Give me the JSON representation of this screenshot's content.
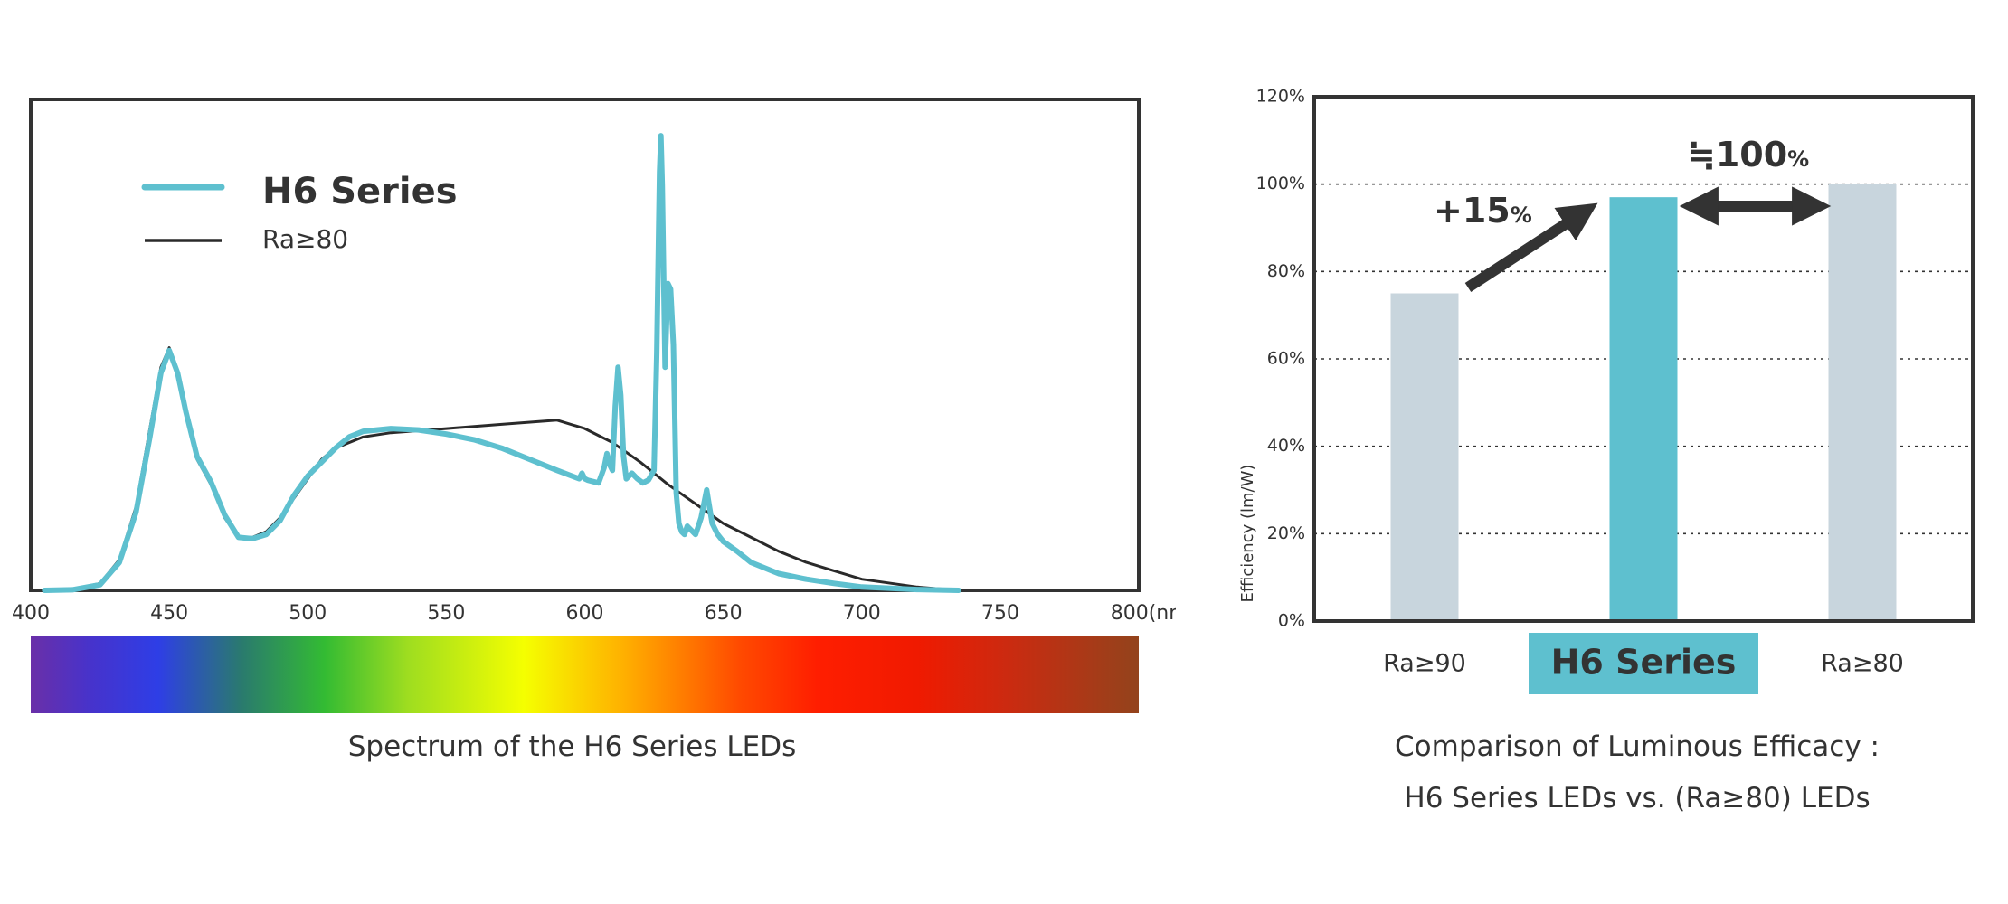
{
  "chart_data": [
    {
      "type": "line",
      "title": "Spectrum of the H6 Series LEDs",
      "x_unit": "(nm)",
      "xlim": [
        400,
        800
      ],
      "x_ticks": [
        400,
        450,
        500,
        550,
        600,
        650,
        700,
        750,
        800
      ],
      "legend_position": "top-left",
      "grid": false,
      "series": [
        {
          "name": "H6 Series",
          "color": "#5ec0cf",
          "x": [
            405,
            415,
            425,
            432,
            438,
            443,
            447,
            450,
            453,
            456,
            460,
            465,
            470,
            475,
            480,
            485,
            490,
            495,
            500,
            505,
            510,
            515,
            520,
            530,
            540,
            550,
            560,
            570,
            580,
            590,
            598,
            599,
            600,
            601,
            603,
            605,
            607,
            608,
            609,
            610,
            611,
            612,
            613,
            614,
            615,
            617,
            619,
            621,
            623,
            625,
            626,
            627,
            627.5,
            628,
            629,
            630,
            631,
            632,
            633,
            634,
            635,
            636,
            637,
            640,
            642,
            644,
            645,
            646,
            648,
            650,
            655,
            660,
            670,
            680,
            690,
            700,
            720,
            735
          ],
          "values": [
            0,
            0.2,
            2,
            10,
            28,
            55,
            78,
            86,
            78,
            64,
            48,
            39,
            27,
            19,
            18.5,
            20,
            25,
            34,
            41,
            46,
            51,
            55,
            57,
            58,
            57.5,
            56,
            54,
            51,
            47,
            43,
            40,
            42,
            40,
            39.5,
            39,
            38.5,
            44,
            49,
            45,
            43,
            66,
            80,
            70,
            48,
            40,
            42,
            40,
            38.5,
            39.5,
            43,
            85,
            150,
            163,
            145,
            80,
            110,
            108,
            88,
            35,
            24,
            21,
            20,
            23,
            20,
            26,
            36,
            30,
            24,
            20,
            17.5,
            14,
            10,
            6,
            4,
            2.5,
            1.2,
            0.3,
            0
          ]
        },
        {
          "name": "Ra≥80",
          "color": "#2a2a2a",
          "x": [
            405,
            415,
            425,
            432,
            438,
            443,
            447,
            450,
            453,
            456,
            460,
            465,
            470,
            475,
            480,
            485,
            490,
            495,
            500,
            505,
            510,
            520,
            530,
            550,
            570,
            590,
            600,
            610,
            620,
            630,
            640,
            650,
            660,
            670,
            680,
            690,
            700,
            720,
            735
          ],
          "values": [
            0,
            0.3,
            2.5,
            11,
            30,
            58,
            80,
            87,
            78,
            63,
            47,
            38,
            26,
            19,
            19,
            21,
            26,
            33,
            40,
            47,
            51,
            55,
            56.5,
            58,
            59.5,
            61,
            58,
            53,
            46,
            38,
            31,
            24,
            19,
            14,
            10,
            7,
            4,
            1.2,
            0
          ]
        }
      ]
    },
    {
      "type": "bar",
      "title": "Comparison of Luminous Efficacy : H6 Series LEDs vs.  (Ra≥80) LEDs",
      "xlabel": "",
      "ylabel": "Efficiency (lm/W)",
      "ylim": [
        0,
        120
      ],
      "y_ticks": [
        "0%",
        "20%",
        "40%",
        "60%",
        "80%",
        "100%",
        "120%"
      ],
      "grid": true,
      "categories": [
        "Ra≥90",
        "H6 Series",
        "Ra≥80"
      ],
      "values": [
        75,
        97,
        100
      ],
      "bar_colors": [
        "#c8d5dd",
        "#5ec0cf",
        "#c8d5dd"
      ],
      "annotations": {
        "increase": "+15",
        "approx_equal": "≒100",
        "percent_sign": "%"
      }
    }
  ],
  "captions": {
    "spectrum": "Spectrum of the H6 Series LEDs",
    "efficacy_line1": "Comparison of Luminous Efficacy :",
    "efficacy_line2": "H6 Series LEDs vs.  (Ra≥80) LEDs"
  }
}
